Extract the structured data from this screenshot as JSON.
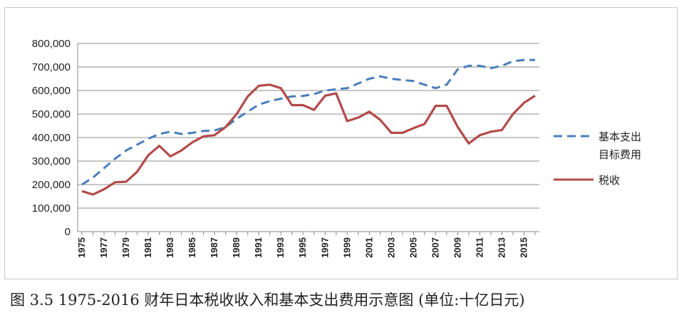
{
  "caption": "图 3.5    1975-2016 财年日本税收收入和基本支出费用示意图 (单位:十亿日元)",
  "chart_data": {
    "type": "line",
    "title": "",
    "xlabel": "",
    "ylabel": "",
    "ylim": [
      0,
      800000
    ],
    "yticks": [
      "0",
      "100,000",
      "200,000",
      "300,000",
      "400,000",
      "500,000",
      "600,000",
      "700,000",
      "800,000"
    ],
    "xlim": [
      1975,
      2016
    ],
    "xticks": [
      "1975",
      "1977",
      "1979",
      "1981",
      "1983",
      "1985",
      "1987",
      "1989",
      "1991",
      "1993",
      "1995",
      "1997",
      "1999",
      "2001",
      "2003",
      "2005",
      "2007",
      "2009",
      "2011",
      "2013",
      "2015"
    ],
    "grid": "horizontal",
    "legend": "right",
    "series": [
      {
        "name_lines": [
          "基本支出",
          "目标费用"
        ],
        "color": "#4a7ebb",
        "style": "dashed",
        "x": [
          1975,
          1976,
          1977,
          1978,
          1979,
          1980,
          1981,
          1982,
          1983,
          1984,
          1985,
          1986,
          1987,
          1988,
          1989,
          1990,
          1991,
          1992,
          1993,
          1994,
          1995,
          1996,
          1997,
          1998,
          1999,
          2000,
          2001,
          2002,
          2003,
          2004,
          2005,
          2006,
          2007,
          2008,
          2009,
          2010,
          2011,
          2012,
          2013,
          2014,
          2015,
          2016
        ],
        "values": [
          200000,
          230000,
          270000,
          310000,
          345000,
          370000,
          395000,
          415000,
          425000,
          415000,
          420000,
          428000,
          430000,
          445000,
          480000,
          510000,
          540000,
          555000,
          565000,
          575000,
          577000,
          585000,
          600000,
          605000,
          610000,
          630000,
          650000,
          660000,
          650000,
          645000,
          640000,
          625000,
          610000,
          625000,
          690000,
          705000,
          705000,
          695000,
          705000,
          725000,
          730000,
          730000
        ]
      },
      {
        "name_lines": [
          "税收"
        ],
        "color": "#b24a4a",
        "style": "solid",
        "x": [
          1975,
          1976,
          1977,
          1978,
          1979,
          1980,
          1981,
          1982,
          1983,
          1984,
          1985,
          1986,
          1987,
          1988,
          1989,
          1990,
          1991,
          1992,
          1993,
          1994,
          1995,
          1996,
          1997,
          1998,
          1999,
          2000,
          2001,
          2002,
          2003,
          2004,
          2005,
          2006,
          2007,
          2008,
          2009,
          2010,
          2011,
          2012,
          2013,
          2014,
          2015,
          2016
        ],
        "values": [
          172000,
          158000,
          180000,
          210000,
          212000,
          255000,
          325000,
          365000,
          320000,
          345000,
          380000,
          405000,
          410000,
          445000,
          500000,
          575000,
          620000,
          625000,
          610000,
          538000,
          538000,
          518000,
          578000,
          588000,
          470000,
          485000,
          510000,
          475000,
          420000,
          420000,
          440000,
          458000,
          535000,
          535000,
          445000,
          375000,
          410000,
          425000,
          432000,
          500000,
          548000,
          578000
        ]
      }
    ]
  }
}
